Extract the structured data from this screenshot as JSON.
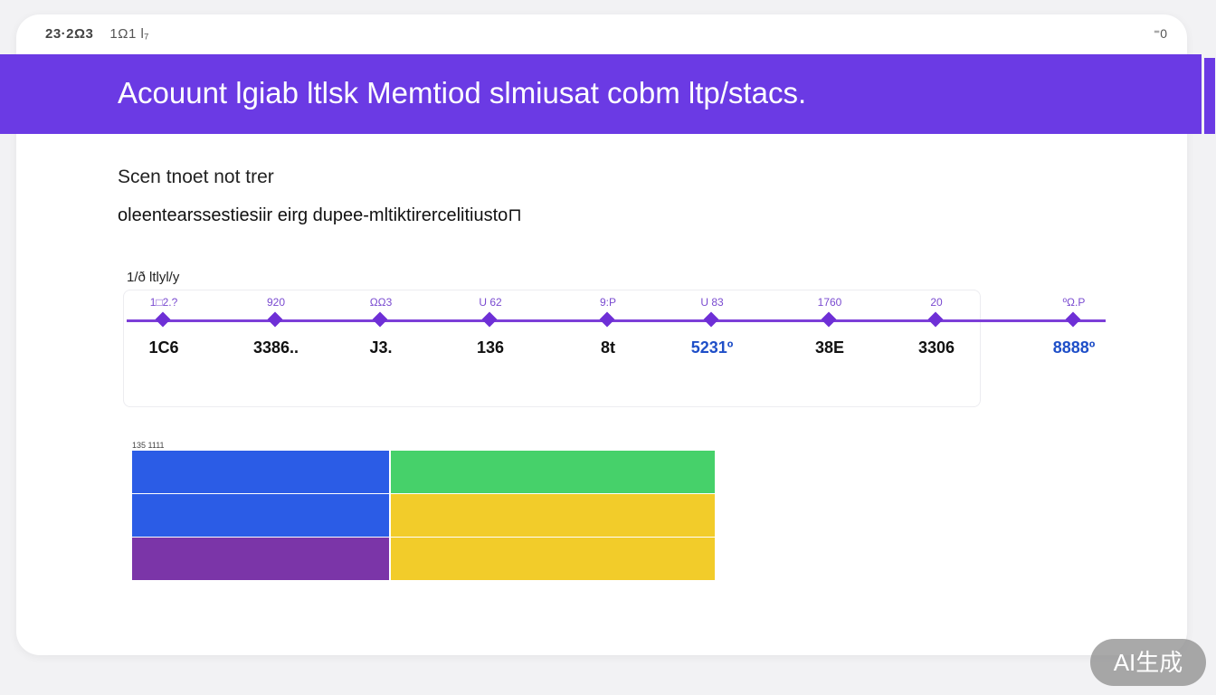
{
  "topbar": {
    "left_text": "23·2Ω3",
    "left_sub": "1Ω1 l₇",
    "right_text": "⁼0"
  },
  "banner": {
    "title": "Acouunt lgiab ltlsk Memtiod slmiusat cobm ltp/stacs."
  },
  "content": {
    "subtitle": "Scen tnoet not trer",
    "description": "oleentearssestiesiir eirg dupee-mltiktirercelitiusto⊓"
  },
  "timeline": {
    "label": "1/ð ltlyl/y",
    "points": [
      {
        "top": "1□2.?",
        "bottom": "1C6",
        "color": "#111111"
      },
      {
        "top": "920",
        "bottom": "3386..",
        "color": "#111111"
      },
      {
        "top": "ΩΩ3",
        "bottom": "J3.",
        "color": "#111111"
      },
      {
        "top": "U 62",
        "bottom": "136",
        "color": "#111111"
      },
      {
        "top": "9:P",
        "bottom": "8t",
        "color": "#111111"
      },
      {
        "top": "U 83",
        "bottom": "5231º",
        "color": "#1f4fc8"
      },
      {
        "top": "1760",
        "bottom": "38E",
        "color": "#111111"
      },
      {
        "top": "20",
        "bottom": "3306",
        "color": "#111111"
      },
      {
        "top": "ºΩ.P",
        "bottom": "8888º",
        "color": "#1f4fc8"
      }
    ]
  },
  "grid": {
    "label": "135 1111",
    "colors": {
      "blue": "#2b5ce6",
      "green": "#46d16a",
      "yellow": "#f2cc2a",
      "purple": "#7b35a8"
    },
    "rows": [
      [
        "blue",
        "green"
      ],
      [
        "blue",
        "yellow"
      ],
      [
        "purple",
        "yellow"
      ]
    ]
  },
  "badge": {
    "text": "AI生成"
  }
}
